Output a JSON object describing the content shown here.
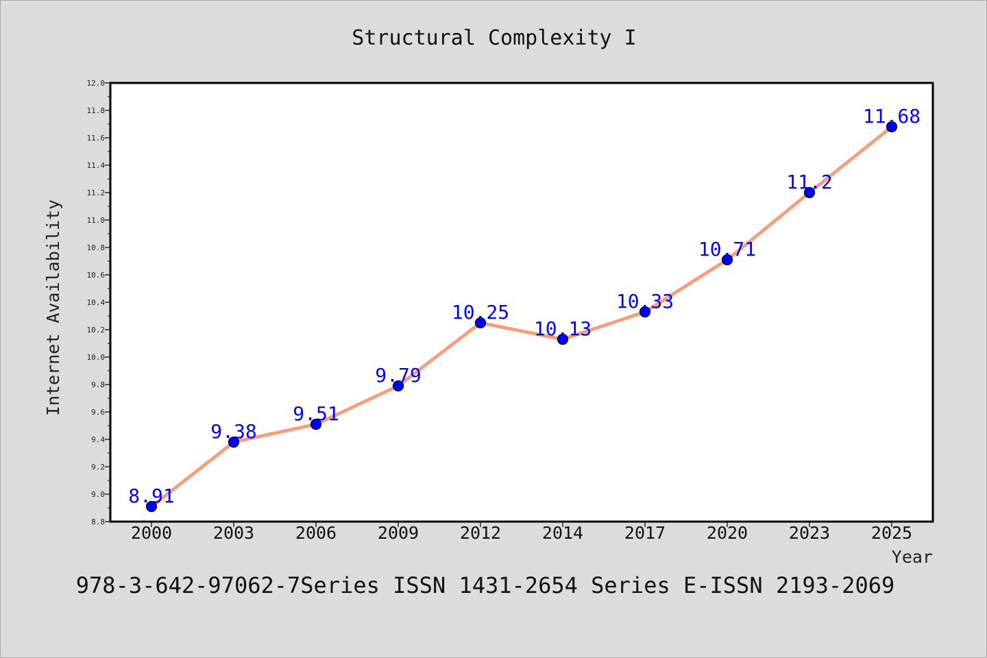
{
  "chart_data": {
    "type": "line",
    "title": "Structural Complexity I",
    "xlabel": "Year",
    "ylabel": "Internet Availability",
    "categories": [
      "2000",
      "2003",
      "2006",
      "2009",
      "2012",
      "2014",
      "2017",
      "2020",
      "2023",
      "2025"
    ],
    "series": [
      {
        "values": [
          8.91,
          9.38,
          9.51,
          9.79,
          10.25,
          10.13,
          10.33,
          10.71,
          11.2,
          11.68
        ],
        "labels": [
          "8.91",
          "9.38",
          "9.51",
          "9.79",
          "10.25",
          "10.13",
          "10.33",
          "10.71",
          "11.2",
          "11.68"
        ],
        "line_color": "#f4a07f",
        "marker_color": "#0000ff"
      }
    ],
    "ylim": [
      8.8,
      12.0
    ],
    "yticks": [
      "8.8",
      "9.0",
      "9.2",
      "9.4",
      "9.6",
      "9.8",
      "10.0",
      "10.2",
      "10.4",
      "10.6",
      "10.8",
      "11.0",
      "11.2",
      "11.4",
      "11.6",
      "11.8",
      "12.0"
    ],
    "grid": false,
    "legend": "none"
  },
  "footer": {
    "text": "978-3-642-97062-7Series ISSN 1431-2654 Series E-ISSN 2193-2069"
  },
  "colors": {
    "background": "#dcdcdc",
    "plot_background": "#ffffff",
    "line": "#f4a07f",
    "marker": "#0000ff",
    "data_label": "#0000ff"
  }
}
